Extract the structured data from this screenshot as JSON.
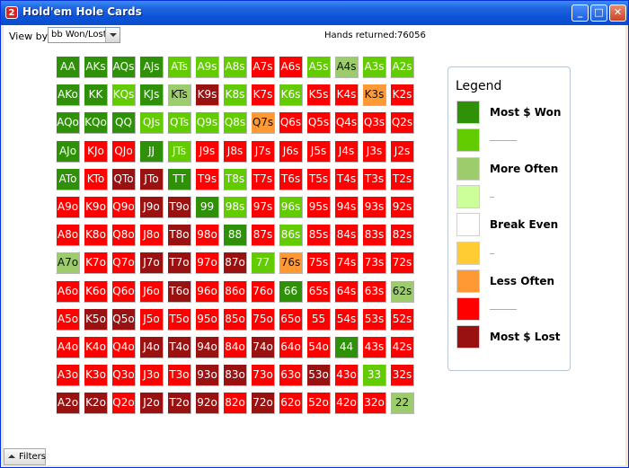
{
  "window": {
    "title": "Hold'em Hole Cards",
    "icon_glyph": "2",
    "minimize": "_",
    "maximize": "□",
    "close": "✕"
  },
  "toolbar": {
    "view_by_label": "View by:",
    "view_by_value": "bb Won/Lost",
    "hands_label": "Hands returned:",
    "hands_value": "76056"
  },
  "colors": {
    "dg": "#2e9108",
    "lg": "#62cc00",
    "ol": "#9ccc6c",
    "pl": "#ccff99",
    "wh": "#ffffff",
    "ye": "#ffcc33",
    "or": "#ff9933",
    "rd": "#ff0000",
    "dr": "#991111"
  },
  "grid": {
    "rows": [
      [
        [
          "AA",
          "dg"
        ],
        [
          "AKs",
          "dg"
        ],
        [
          "AQs",
          "dg"
        ],
        [
          "AJs",
          "dg"
        ],
        [
          "ATs",
          "lg"
        ],
        [
          "A9s",
          "lg"
        ],
        [
          "A8s",
          "lg"
        ],
        [
          "A7s",
          "rd"
        ],
        [
          "A6s",
          "rd"
        ],
        [
          "A5s",
          "lg"
        ],
        [
          "A4s",
          "ol"
        ],
        [
          "A3s",
          "lg"
        ],
        [
          "A2s",
          "lg"
        ]
      ],
      [
        [
          "AKo",
          "dg"
        ],
        [
          "KK",
          "dg"
        ],
        [
          "KQs",
          "lg"
        ],
        [
          "KJs",
          "dg"
        ],
        [
          "KTs",
          "ol"
        ],
        [
          "K9s",
          "dr"
        ],
        [
          "K8s",
          "lg"
        ],
        [
          "K7s",
          "rd"
        ],
        [
          "K6s",
          "lg"
        ],
        [
          "K5s",
          "rd"
        ],
        [
          "K4s",
          "rd"
        ],
        [
          "K3s",
          "or"
        ],
        [
          "K2s",
          "rd"
        ]
      ],
      [
        [
          "AQo",
          "dg"
        ],
        [
          "KQo",
          "dg"
        ],
        [
          "QQ",
          "dg"
        ],
        [
          "QJs",
          "lg"
        ],
        [
          "QTs",
          "lg"
        ],
        [
          "Q9s",
          "lg"
        ],
        [
          "Q8s",
          "lg"
        ],
        [
          "Q7s",
          "or"
        ],
        [
          "Q6s",
          "rd"
        ],
        [
          "Q5s",
          "rd"
        ],
        [
          "Q4s",
          "rd"
        ],
        [
          "Q3s",
          "rd"
        ],
        [
          "Q2s",
          "rd"
        ]
      ],
      [
        [
          "AJo",
          "dg"
        ],
        [
          "KJo",
          "rd"
        ],
        [
          "QJo",
          "rd"
        ],
        [
          "JJ",
          "dg"
        ],
        [
          "JTs",
          "lg"
        ],
        [
          "J9s",
          "rd"
        ],
        [
          "J8s",
          "rd"
        ],
        [
          "J7s",
          "rd"
        ],
        [
          "J6s",
          "rd"
        ],
        [
          "J5s",
          "rd"
        ],
        [
          "J4s",
          "rd"
        ],
        [
          "J3s",
          "rd"
        ],
        [
          "J2s",
          "rd"
        ]
      ],
      [
        [
          "ATo",
          "dg"
        ],
        [
          "KTo",
          "rd"
        ],
        [
          "QTo",
          "dr"
        ],
        [
          "JTo",
          "dr"
        ],
        [
          "TT",
          "dg"
        ],
        [
          "T9s",
          "rd"
        ],
        [
          "T8s",
          "lg"
        ],
        [
          "T7s",
          "rd"
        ],
        [
          "T6s",
          "rd"
        ],
        [
          "T5s",
          "rd"
        ],
        [
          "T4s",
          "rd"
        ],
        [
          "T3s",
          "rd"
        ],
        [
          "T2s",
          "rd"
        ]
      ],
      [
        [
          "A9o",
          "rd"
        ],
        [
          "K9o",
          "rd"
        ],
        [
          "Q9o",
          "rd"
        ],
        [
          "J9o",
          "dr"
        ],
        [
          "T9o",
          "dr"
        ],
        [
          "99",
          "dg"
        ],
        [
          "98s",
          "lg"
        ],
        [
          "97s",
          "rd"
        ],
        [
          "96s",
          "lg"
        ],
        [
          "95s",
          "rd"
        ],
        [
          "94s",
          "rd"
        ],
        [
          "93s",
          "rd"
        ],
        [
          "92s",
          "rd"
        ]
      ],
      [
        [
          "A8o",
          "rd"
        ],
        [
          "K8o",
          "rd"
        ],
        [
          "Q8o",
          "rd"
        ],
        [
          "J8o",
          "rd"
        ],
        [
          "T8o",
          "dr"
        ],
        [
          "98o",
          "rd"
        ],
        [
          "88",
          "dg"
        ],
        [
          "87s",
          "rd"
        ],
        [
          "86s",
          "lg"
        ],
        [
          "85s",
          "rd"
        ],
        [
          "84s",
          "rd"
        ],
        [
          "83s",
          "rd"
        ],
        [
          "82s",
          "rd"
        ]
      ],
      [
        [
          "A7o",
          "ol"
        ],
        [
          "K7o",
          "rd"
        ],
        [
          "Q7o",
          "rd"
        ],
        [
          "J7o",
          "dr"
        ],
        [
          "T7o",
          "dr"
        ],
        [
          "97o",
          "rd"
        ],
        [
          "87o",
          "dr"
        ],
        [
          "77",
          "lg"
        ],
        [
          "76s",
          "or"
        ],
        [
          "75s",
          "rd"
        ],
        [
          "74s",
          "rd"
        ],
        [
          "73s",
          "rd"
        ],
        [
          "72s",
          "rd"
        ]
      ],
      [
        [
          "A6o",
          "rd"
        ],
        [
          "K6o",
          "rd"
        ],
        [
          "Q6o",
          "rd"
        ],
        [
          "J6o",
          "rd"
        ],
        [
          "T6o",
          "dr"
        ],
        [
          "96o",
          "rd"
        ],
        [
          "86o",
          "rd"
        ],
        [
          "76o",
          "rd"
        ],
        [
          "66",
          "dg"
        ],
        [
          "65s",
          "rd"
        ],
        [
          "64s",
          "rd"
        ],
        [
          "63s",
          "rd"
        ],
        [
          "62s",
          "ol"
        ]
      ],
      [
        [
          "A5o",
          "rd"
        ],
        [
          "K5o",
          "dr"
        ],
        [
          "Q5o",
          "dr"
        ],
        [
          "J5o",
          "rd"
        ],
        [
          "T5o",
          "rd"
        ],
        [
          "95o",
          "rd"
        ],
        [
          "85o",
          "rd"
        ],
        [
          "75o",
          "rd"
        ],
        [
          "65o",
          "rd"
        ],
        [
          "55",
          "rd"
        ],
        [
          "54s",
          "rd"
        ],
        [
          "53s",
          "rd"
        ],
        [
          "52s",
          "rd"
        ]
      ],
      [
        [
          "A4o",
          "rd"
        ],
        [
          "K4o",
          "rd"
        ],
        [
          "Q4o",
          "rd"
        ],
        [
          "J4o",
          "dr"
        ],
        [
          "T4o",
          "dr"
        ],
        [
          "94o",
          "dr"
        ],
        [
          "84o",
          "rd"
        ],
        [
          "74o",
          "dr"
        ],
        [
          "64o",
          "rd"
        ],
        [
          "54o",
          "rd"
        ],
        [
          "44",
          "dg"
        ],
        [
          "43s",
          "rd"
        ],
        [
          "42s",
          "rd"
        ]
      ],
      [
        [
          "A3o",
          "rd"
        ],
        [
          "K3o",
          "rd"
        ],
        [
          "Q3o",
          "rd"
        ],
        [
          "J3o",
          "rd"
        ],
        [
          "T3o",
          "rd"
        ],
        [
          "93o",
          "dr"
        ],
        [
          "83o",
          "dr"
        ],
        [
          "73o",
          "rd"
        ],
        [
          "63o",
          "rd"
        ],
        [
          "53o",
          "dr"
        ],
        [
          "43o",
          "rd"
        ],
        [
          "33",
          "lg"
        ],
        [
          "32s",
          "rd"
        ]
      ],
      [
        [
          "A2o",
          "dr"
        ],
        [
          "K2o",
          "dr"
        ],
        [
          "Q2o",
          "rd"
        ],
        [
          "J2o",
          "dr"
        ],
        [
          "T2o",
          "dr"
        ],
        [
          "92o",
          "dr"
        ],
        [
          "82o",
          "rd"
        ],
        [
          "72o",
          "dr"
        ],
        [
          "62o",
          "rd"
        ],
        [
          "52o",
          "rd"
        ],
        [
          "42o",
          "rd"
        ],
        [
          "32o",
          "rd"
        ],
        [
          "22",
          "ol"
        ]
      ]
    ]
  },
  "legend": {
    "title": "Legend",
    "items": [
      {
        "color": "#2e9108",
        "label": "Most $ Won"
      },
      {
        "color": "#62cc00",
        "label": ""
      },
      {
        "color": "#9ccc6c",
        "label": "More Often"
      },
      {
        "color": "#ccff99",
        "label": ""
      },
      {
        "color": "#ffffff",
        "label": "Break Even"
      },
      {
        "color": "#ffcc33",
        "label": ""
      },
      {
        "color": "#ff9933",
        "label": "Less Often"
      },
      {
        "color": "#ff0000",
        "label": ""
      },
      {
        "color": "#991111",
        "label": "Most $ Lost"
      }
    ]
  },
  "filters": {
    "label": "Filters"
  }
}
